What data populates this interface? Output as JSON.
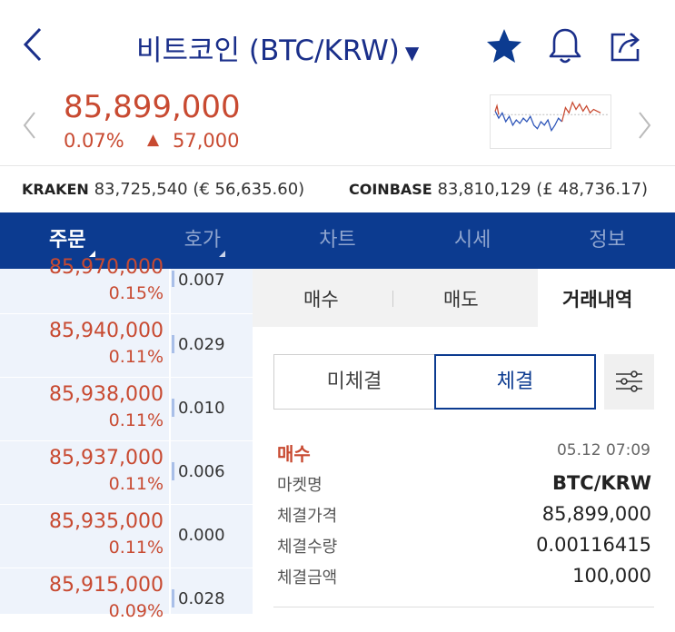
{
  "header": {
    "title": "비트코인 (BTC/KRW)",
    "caret": "▼"
  },
  "price": {
    "current": "85,899,000",
    "change_pct": "0.07%",
    "change_arrow": "▲",
    "change_amt": "57,000"
  },
  "exchanges": [
    {
      "name": "KRAKEN",
      "value": "83,725,540 (€ 56,635.60)"
    },
    {
      "name": "COINBASE",
      "value": "83,810,129 (£ 48,736.17)"
    }
  ],
  "tabs": [
    {
      "label": "주문",
      "active": true
    },
    {
      "label": "호가",
      "active": false
    },
    {
      "label": "차트",
      "active": false
    },
    {
      "label": "시세",
      "active": false
    },
    {
      "label": "정보",
      "active": false
    }
  ],
  "order_book": [
    {
      "price": "85,970,000",
      "pct": "0.15%",
      "qty": "0.007"
    },
    {
      "price": "85,940,000",
      "pct": "0.11%",
      "qty": "0.029"
    },
    {
      "price": "85,938,000",
      "pct": "0.11%",
      "qty": "0.010"
    },
    {
      "price": "85,937,000",
      "pct": "0.11%",
      "qty": "0.006"
    },
    {
      "price": "85,935,000",
      "pct": "0.11%",
      "qty": "0.000"
    },
    {
      "price": "85,915,000",
      "pct": "0.09%",
      "qty": "0.028"
    }
  ],
  "trade_tabs": {
    "buy": "매수",
    "sell": "매도",
    "history": "거래내역"
  },
  "segments": {
    "unfilled": "미체결",
    "filled": "체결"
  },
  "trade_detail": {
    "type": "매수",
    "time": "05.12 07:09",
    "market_label": "마켓명",
    "market_value": "BTC/KRW",
    "price_label": "체결가격",
    "price_value": "85,899,000",
    "qty_label": "체결수량",
    "qty_value": "0.00116415",
    "amount_label": "체결금액",
    "amount_value": "100,000"
  },
  "colors": {
    "brand_blue": "#0c3b90",
    "up_red": "#c84a31",
    "down_blue": "#2b53b8"
  },
  "icons": [
    "back-icon",
    "star-icon",
    "bell-icon",
    "share-icon",
    "prev-icon",
    "next-icon",
    "filter-icon"
  ]
}
